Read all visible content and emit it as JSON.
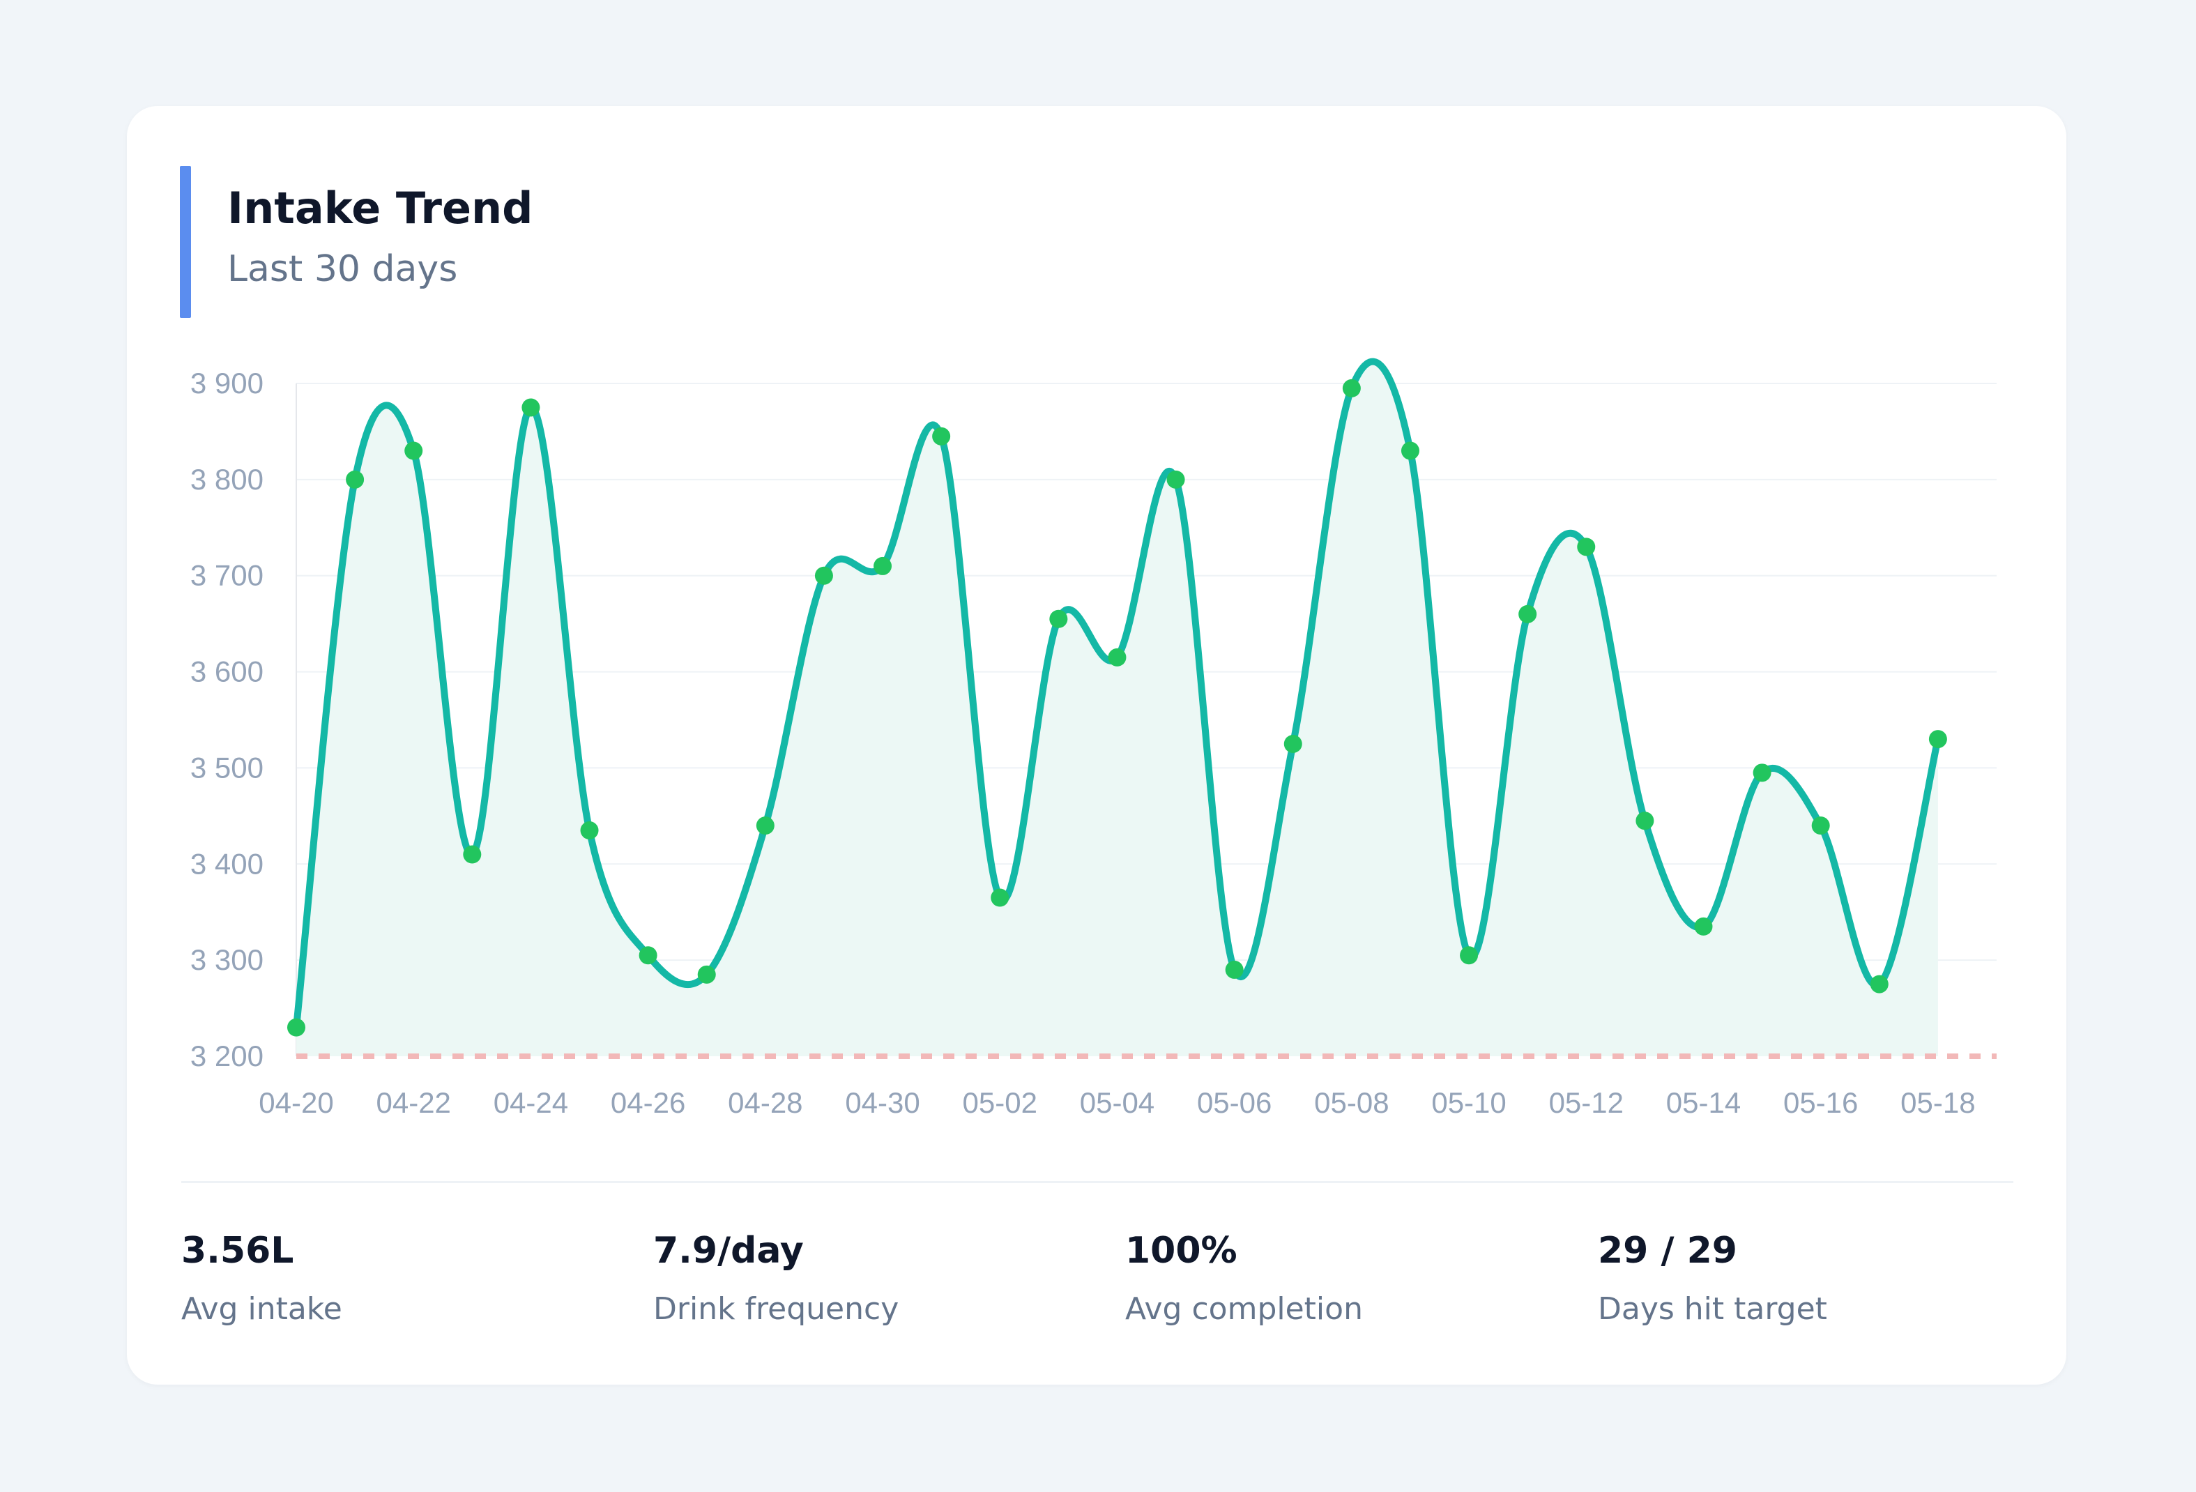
{
  "header": {
    "title": "Intake Trend",
    "subtitle": "Last 30 days"
  },
  "colors": {
    "accent": "#5b8def",
    "line": "#14b8a6",
    "points": "#22c55e",
    "area": "#ecf8f5",
    "target_line": "#f2b8b8",
    "grid": "#eef2f6"
  },
  "chart_data": {
    "type": "area",
    "title": "Intake Trend",
    "subtitle": "Last 30 days",
    "x": [
      "04-20",
      "04-21",
      "04-22",
      "04-23",
      "04-24",
      "04-25",
      "04-26",
      "04-27",
      "04-28",
      "04-29",
      "04-30",
      "05-01",
      "05-02",
      "05-03",
      "05-04",
      "05-05",
      "05-06",
      "05-07",
      "05-08",
      "05-09",
      "05-10",
      "05-11",
      "05-12",
      "05-13",
      "05-14",
      "05-15",
      "05-16",
      "05-17",
      "05-18"
    ],
    "x_tick_labels": [
      "04-20",
      "04-22",
      "04-24",
      "04-26",
      "04-28",
      "04-30",
      "05-02",
      "05-04",
      "05-06",
      "05-08",
      "05-10",
      "05-12",
      "05-14",
      "05-16",
      "05-18"
    ],
    "series": [
      {
        "values": [
          3230,
          3800,
          3830,
          3410,
          3875,
          3435,
          3305,
          3285,
          3440,
          3700,
          3710,
          3845,
          3365,
          3655,
          3615,
          3800,
          3290,
          3525,
          3895,
          3830,
          3305,
          3660,
          3730,
          3445,
          3335,
          3495,
          3440,
          3275,
          3530
        ]
      }
    ],
    "y_ticks": [
      "3 200",
      "3 300",
      "3 400",
      "3 500",
      "3 600",
      "3 700",
      "3 800",
      "3 900"
    ],
    "ylim": [
      3200,
      3900
    ],
    "target": 3200,
    "grid": true,
    "smooth": true
  },
  "stats": [
    {
      "value": "3.56L",
      "label": "Avg intake"
    },
    {
      "value": "7.9/day",
      "label": "Drink frequency"
    },
    {
      "value": "100%",
      "label": "Avg completion"
    },
    {
      "value": "29 / 29",
      "label": "Days hit target"
    }
  ]
}
